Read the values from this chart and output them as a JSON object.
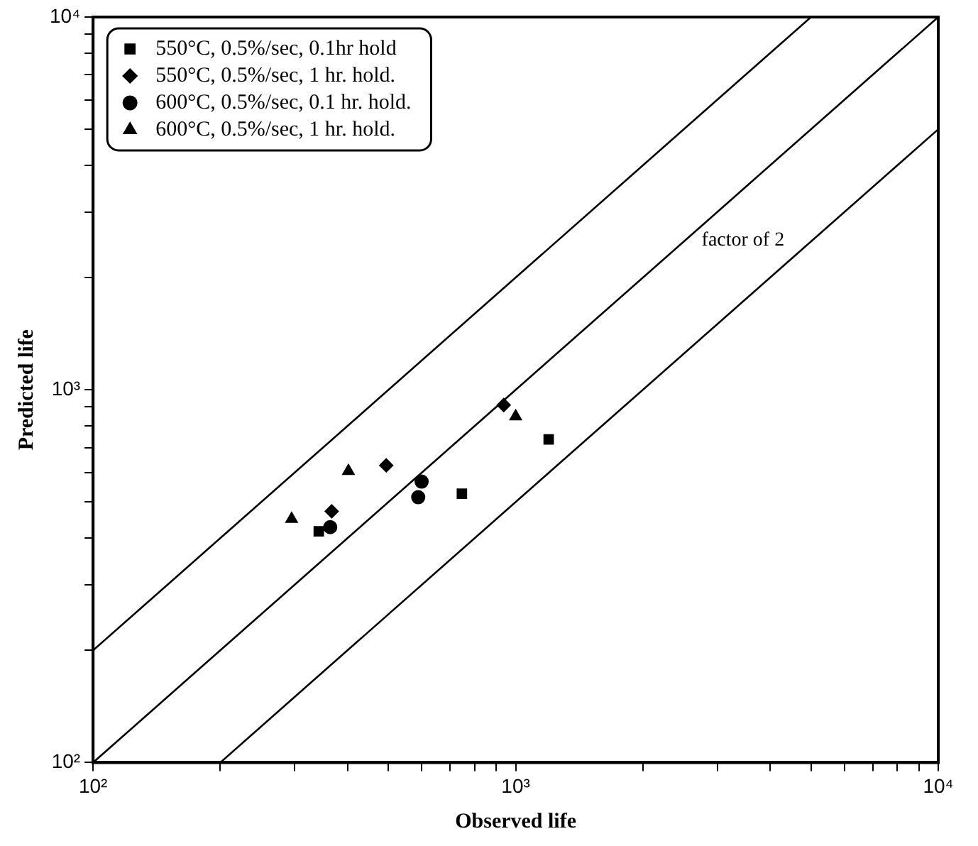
{
  "chart_data": {
    "type": "scatter",
    "xlabel": "Observed life",
    "ylabel": "Predicted life",
    "log": "xy",
    "grid": false,
    "legend": "top left",
    "xlim": [
      100,
      10000
    ],
    "ylim": [
      100,
      10000
    ],
    "xticks": [
      {
        "value": 100,
        "label": "10²"
      },
      {
        "value": 200,
        "label": null
      },
      {
        "value": 300,
        "label": null
      },
      {
        "value": 400,
        "label": null
      },
      {
        "value": 500,
        "label": null
      },
      {
        "value": 600,
        "label": null
      },
      {
        "value": 700,
        "label": null
      },
      {
        "value": 800,
        "label": null
      },
      {
        "value": 900,
        "label": null
      },
      {
        "value": 1000,
        "label": "10³"
      },
      {
        "value": 2000,
        "label": null
      },
      {
        "value": 3000,
        "label": null
      },
      {
        "value": 4000,
        "label": null
      },
      {
        "value": 5000,
        "label": null
      },
      {
        "value": 6000,
        "label": null
      },
      {
        "value": 7000,
        "label": null
      },
      {
        "value": 8000,
        "label": null
      },
      {
        "value": 9000,
        "label": null
      },
      {
        "value": 10000,
        "label": "10⁴"
      }
    ],
    "yticks": [
      {
        "value": 100,
        "label": "10²"
      },
      {
        "value": 200,
        "label": null
      },
      {
        "value": 300,
        "label": null
      },
      {
        "value": 400,
        "label": null
      },
      {
        "value": 500,
        "label": null
      },
      {
        "value": 600,
        "label": null
      },
      {
        "value": 700,
        "label": null
      },
      {
        "value": 800,
        "label": null
      },
      {
        "value": 900,
        "label": null
      },
      {
        "value": 1000,
        "label": "10³"
      },
      {
        "value": 2000,
        "label": null
      },
      {
        "value": 3000,
        "label": null
      },
      {
        "value": 4000,
        "label": null
      },
      {
        "value": 5000,
        "label": null
      },
      {
        "value": 6000,
        "label": null
      },
      {
        "value": 7000,
        "label": null
      },
      {
        "value": 8000,
        "label": null
      },
      {
        "value": 9000,
        "label": null
      },
      {
        "value": 10000,
        "label": "10⁴"
      }
    ],
    "annotations": [
      "factor of 2"
    ],
    "series": [
      {
        "name": "550°C, 0.5%/sec, 0.1hr hold",
        "color": "#000000",
        "marker": "square",
        "x": [
          342,
          746,
          1197
        ],
        "values": [
          417,
          526,
          736
        ]
      },
      {
        "name": "550°C, 0.5%/sec, 1 hr. hold.",
        "color": "#000000",
        "marker": "diamond",
        "x": [
          367,
          494,
          937
        ],
        "values": [
          472,
          627,
          910
        ]
      },
      {
        "name": "600°C, 0.5%/sec, 0.1 hr. hold.",
        "color": "#000000",
        "marker": "circle",
        "x": [
          364,
          599,
          588
        ],
        "values": [
          428,
          567,
          515
        ]
      },
      {
        "name": "600°C, 0.5%/sec, 1 hr. hold.",
        "color": "#000000",
        "marker": "triangle",
        "x": [
          295,
          402,
          1000
        ],
        "values": [
          450,
          605,
          848
        ]
      },
      {
        "type": "line",
        "color": "#000000",
        "marker": "none",
        "line_style": "solid",
        "x": [
          100,
          5000
        ],
        "values": [
          200,
          10000
        ]
      },
      {
        "type": "line",
        "color": "#000000",
        "marker": "none",
        "line_style": "solid",
        "x": [
          100,
          10000
        ],
        "values": [
          100,
          10000
        ]
      },
      {
        "type": "line",
        "color": "#000000",
        "marker": "none",
        "line_style": "solid",
        "x": [
          200,
          10000
        ],
        "values": [
          100,
          5000
        ]
      }
    ]
  }
}
